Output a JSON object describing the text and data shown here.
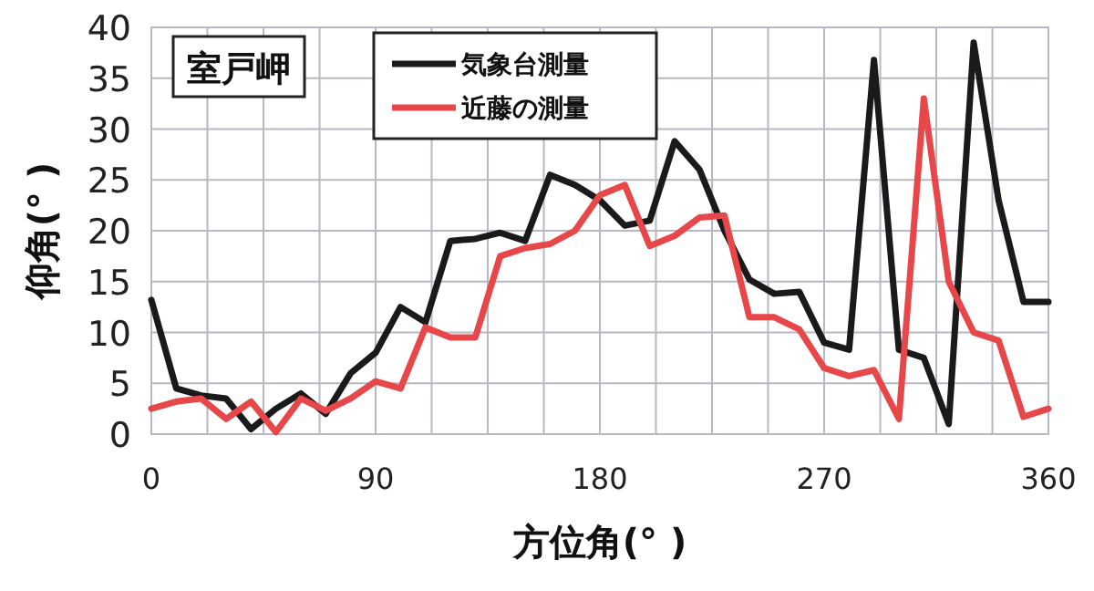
{
  "chart_data": {
    "type": "line",
    "xlabel": "方位角(°  )",
    "ylabel": "仰角(°  )",
    "annotations": [
      "室戸岬"
    ],
    "x": [
      0,
      10,
      20,
      30,
      40,
      50,
      60,
      70,
      80,
      90,
      100,
      110,
      120,
      130,
      140,
      150,
      160,
      170,
      180,
      190,
      200,
      210,
      220,
      230,
      240,
      250,
      260,
      270,
      280,
      290,
      300,
      310,
      320,
      330,
      340,
      350,
      360
    ],
    "series": [
      {
        "name": "気象台測量",
        "color": "#1a1a1a",
        "values": [
          13.2,
          4.5,
          3.8,
          3.5,
          0.5,
          2.5,
          4,
          2,
          6,
          8,
          12.5,
          11,
          19,
          19.2,
          19.8,
          19,
          25.5,
          24.5,
          23,
          20.5,
          21,
          28.8,
          26,
          20,
          15.2,
          13.8,
          14,
          9,
          8.3,
          36.8,
          8.3,
          7.5,
          1,
          38.5,
          23,
          13,
          13
        ]
      },
      {
        "name": "近藤の測量",
        "color": "#e8474a",
        "values": [
          2.5,
          3.2,
          3.5,
          1.5,
          3.2,
          0.2,
          3.5,
          2.3,
          3.5,
          5.2,
          4.5,
          10.5,
          9.5,
          9.5,
          17.5,
          18.3,
          18.7,
          20,
          23.5,
          24.5,
          18.5,
          19.5,
          21.3,
          21.5,
          11.5,
          11.5,
          10.3,
          6.5,
          5.7,
          6.3,
          1.5,
          33,
          15,
          10,
          9.2,
          1.7,
          2.5
        ]
      }
    ],
    "xlim": [
      0,
      360
    ],
    "ylim": [
      0,
      40
    ],
    "xticks": [
      0,
      {
        "value": 22.5,
        "label": null
      },
      {
        "value": 45,
        "label": null
      },
      {
        "value": 67.5,
        "label": null
      },
      90,
      {
        "value": 112.5,
        "label": null
      },
      {
        "value": 135,
        "label": null
      },
      {
        "value": 157.5,
        "label": null
      },
      180,
      {
        "value": 202.5,
        "label": null
      },
      {
        "value": 225,
        "label": null
      },
      {
        "value": 247.5,
        "label": null
      },
      270,
      {
        "value": 292.5,
        "label": null
      },
      {
        "value": 315,
        "label": null
      },
      {
        "value": 337.5,
        "label": null
      },
      360
    ],
    "yticks": [
      0,
      5,
      10,
      15,
      20,
      25,
      30,
      35,
      40
    ],
    "grid": true,
    "legend": "top",
    "marker": "none",
    "line_style": "solid"
  }
}
